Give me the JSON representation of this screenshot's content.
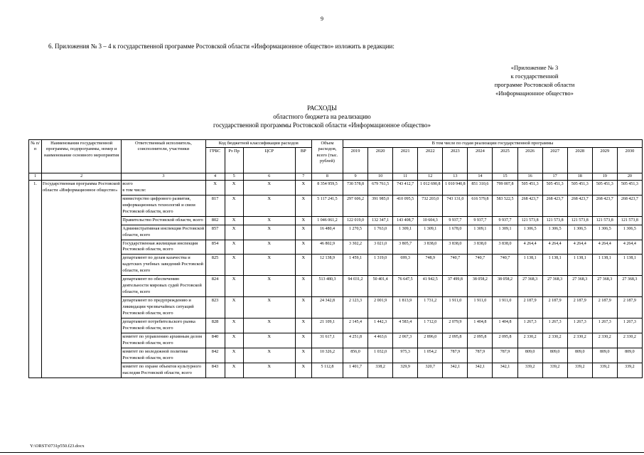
{
  "page": {
    "number": "9",
    "intro": "6. Приложения № 3 – 4 к государственной программе Ростовской области «Информационное общество» изложить в редакции:",
    "annex_lines": [
      "«Приложение № 3",
      "к государственной",
      "программе Ростовской области",
      "«Информационное общество»"
    ],
    "title_lines": [
      "РАСХОДЫ",
      "областного бюджета на реализацию",
      "государственной программы Ростовской области «Информационное общество»"
    ],
    "footer": "Y:\\ORST\\0731p550.f23.docx"
  },
  "table": {
    "header": {
      "col_no": "№ п/п",
      "col_name": "Наименования государственной программы, подпрограммы, номер и наименование основного мероприятия",
      "col_executor": "Ответственный исполнитель, соисполнители, участники",
      "code_group": "Код бюджетной классификации расходов",
      "code_columns": [
        "ГРБС",
        "Рз Пр",
        "ЦСР",
        "ВР"
      ],
      "col_volume": "Объем расходов, всего (тыс. рублей)",
      "years_group": "В том числе по годам реализации государственной программы"
    },
    "years": [
      "2019",
      "2020",
      "2021",
      "2022",
      "2023",
      "2024",
      "2025",
      "2026",
      "2027",
      "2028",
      "2029",
      "2030"
    ],
    "numbering": [
      "1",
      "2",
      "3",
      "4",
      "5",
      "6",
      "7",
      "8",
      "9",
      "10",
      "11",
      "12",
      "13",
      "14",
      "15",
      "16",
      "17",
      "18",
      "19",
      "20"
    ],
    "row_no": "1.",
    "program_name": "Государственная программа Ростовской области «Информационное общество»",
    "rows": [
      {
        "executor": "всего\nв том числе:",
        "grbs": "X",
        "rz_pr": "X",
        "csr": "X",
        "vr": "X",
        "total": "8 354 959,5",
        "years": [
          "730 578,8",
          "679 761,5",
          "743 412,7",
          "1 012 690,8",
          "1 010 940,8",
          "851 310,6",
          "799 007,8",
          "505 451,3",
          "505 451,3",
          "505 451,3",
          "505 451,3",
          "505 451,3"
        ]
      },
      {
        "executor": "министерство цифрового развития, информационных технологий и связи Ростовской области, всего",
        "grbs": "817",
        "rz_pr": "X",
        "csr": "X",
        "vr": "X",
        "total": "5 117 241,5",
        "years": [
          "297 606,2",
          "391 985,0",
          "410 095,5",
          "732 203,0",
          "743 131,0",
          "616 579,8",
          "583 522,5",
          "268 423,7",
          "268 423,7",
          "268 423,7",
          "268 423,7",
          "268 423,7"
        ]
      },
      {
        "executor": "Правительство Ростовской области, всего",
        "grbs": "802",
        "rz_pr": "X",
        "csr": "X",
        "vr": "X",
        "total": "1 046 061,2",
        "years": [
          "122 019,0",
          "132 347,1",
          "143 408,7",
          "10 604,3",
          "9 937,7",
          "9 937,7",
          "9 937,7",
          "121 573,8",
          "121 573,8",
          "121 573,8",
          "121 573,8",
          "121 573,8"
        ]
      },
      {
        "executor": "Административная инспекция Ростовской области, всего",
        "grbs": "857",
        "rz_pr": "X",
        "csr": "X",
        "vr": "X",
        "total": "16 480,4",
        "years": [
          "1 270,5",
          "1 763,0",
          "1 309,1",
          "1 309,1",
          "1 678,0",
          "1 309,1",
          "1 309,1",
          "1 306,5",
          "1 306,5",
          "1 306,5",
          "1 306,5",
          "1 306,5"
        ]
      },
      {
        "executor": "Государственная жилищная инспекция Ростовской области, всего",
        "grbs": "854",
        "rz_pr": "X",
        "csr": "X",
        "vr": "X",
        "total": "46 802,9",
        "years": [
          "3 302,2",
          "3 021,0",
          "3 805,7",
          "3 838,0",
          "3 838,0",
          "3 838,0",
          "3 838,0",
          "4 264,4",
          "4 264,4",
          "4 264,4",
          "4 264,4",
          "4 264,4"
        ]
      },
      {
        "executor": "департамент по делам казачества и кадетских учебных заведений Ростовской области, всего",
        "grbs": "825",
        "rz_pr": "X",
        "csr": "X",
        "vr": "X",
        "total": "12 138,9",
        "years": [
          "1 459,1",
          "1 319,0",
          "699,3",
          "748,9",
          "740,7",
          "740,7",
          "740,7",
          "1 138,1",
          "1 138,1",
          "1 138,1",
          "1 138,1",
          "1 138,1"
        ]
      },
      {
        "executor": "департамент по обеспечению деятельности мировых судей Ростовской области, всего",
        "grbs": "824",
        "rz_pr": "X",
        "csr": "X",
        "vr": "X",
        "total": "513 480,3",
        "years": [
          "94 031,2",
          "50 401,4",
          "76 647,5",
          "41 942,5",
          "37 499,8",
          "38 058,2",
          "38 058,2",
          "27 368,3",
          "27 368,3",
          "27 368,3",
          "27 368,3",
          "27 368,3"
        ]
      },
      {
        "executor": "департамент по предупреждению и ликвидации чрезвычайных ситуаций Ростовской области, всего",
        "grbs": "823",
        "rz_pr": "X",
        "csr": "X",
        "vr": "X",
        "total": "24 342,8",
        "years": [
          "2 123,3",
          "2 001,9",
          "1 813,9",
          "1 731,2",
          "1 911,0",
          "1 911,0",
          "1 911,0",
          "2 187,9",
          "2 187,9",
          "2 187,9",
          "2 187,9",
          "2 187,9"
        ]
      },
      {
        "executor": "департамент потребительского рынка Ростовской области, всего",
        "grbs": "828",
        "rz_pr": "X",
        "csr": "X",
        "vr": "X",
        "total": "21 109,1",
        "years": [
          "2 145,4",
          "1 442,3",
          "4 583,4",
          "1 712,0",
          "2 079,9",
          "1 404,8",
          "1 404,8",
          "1 267,3",
          "1 267,3",
          "1 267,3",
          "1 267,3",
          "1 267,3"
        ]
      },
      {
        "executor": "комитет по управлению архивным делом Ростовской области, всего",
        "grbs": "840",
        "rz_pr": "X",
        "csr": "X",
        "vr": "X",
        "total": "31 617,1",
        "years": [
          "4 251,8",
          "4 463,6",
          "2 067,3",
          "2 896,0",
          "2 095,8",
          "2 095,8",
          "2 095,8",
          "2 330,2",
          "2 330,2",
          "2 330,2",
          "2 330,2",
          "2 330,2"
        ]
      },
      {
        "executor": "комитет по молодежной политике Ростовской области, всего",
        "grbs": "842",
        "rz_pr": "X",
        "csr": "X",
        "vr": "X",
        "total": "10 326,2",
        "years": [
          "856,0",
          "1 032,0",
          "975,3",
          "1 054,2",
          "787,9",
          "787,9",
          "787,9",
          "809,0",
          "809,0",
          "809,0",
          "809,0",
          "809,0"
        ]
      },
      {
        "executor": "комитет по охране объектов культурного наследия Ростовской области, всего",
        "grbs": "843",
        "rz_pr": "X",
        "csr": "X",
        "vr": "X",
        "total": "5 112,8",
        "years": [
          "1 401,7",
          "338,2",
          "329,9",
          "320,7",
          "342,1",
          "342,1",
          "342,1",
          "339,2",
          "339,2",
          "339,2",
          "339,2",
          "339,2"
        ]
      }
    ]
  }
}
